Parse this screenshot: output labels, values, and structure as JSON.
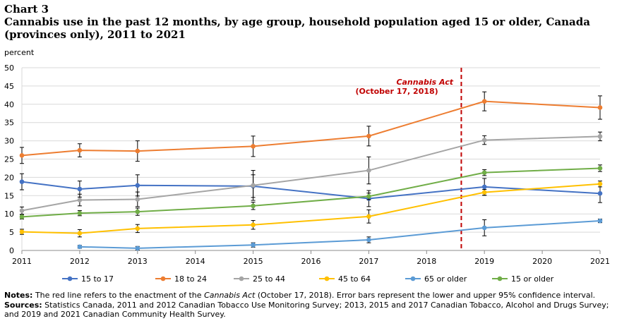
{
  "chart_label": "Chart 3",
  "chart_title": "Cannabis use in the past 12 months, by age group, household population aged 15 or older, Canada (provinces only), 2011 to 2021",
  "notes": {
    "notes_label": "Notes:",
    "notes_text_1": "The red line refers to the enactment of the",
    "notes_act": "Cannabis Act",
    "notes_text_2": "(October 17, 2018). Error bars represent the lower and upper 95% confidence interval.",
    "sources_label": "Sources:",
    "sources_text": "Statistics Canada, 2011 and 2012 Canadian Tobacco Use Monitoring Survey; 2013, 2015 and 2017 Canadian Tobacco, Alcohol and Drugs Survey; and 2019 and 2021 Canadian Community Health Survey."
  },
  "chart_data": {
    "type": "line",
    "ylabel": "percent",
    "xlabel": "",
    "x_ticks": [
      "2011",
      "2012",
      "2013",
      "2014",
      "2015",
      "2016",
      "2017",
      "2018",
      "2019",
      "2020",
      "2021"
    ],
    "xlim": [
      2011,
      2021
    ],
    "ylim": [
      0,
      50
    ],
    "y_ticks": [
      0,
      5,
      10,
      15,
      20,
      25,
      30,
      35,
      40,
      45,
      50
    ],
    "grid": true,
    "legend_position": "bottom",
    "annotation": {
      "line1": "Cannabis Act",
      "line2": "(October 17, 2018)",
      "x": 2018.6,
      "color": "#C00000"
    },
    "series": [
      {
        "name": "15 to 17",
        "color": "#4472C4",
        "points": [
          {
            "x": 2011,
            "y": 18.8,
            "lo": 16.6,
            "hi": 21.0
          },
          {
            "x": 2012,
            "y": 16.8,
            "lo": 14.6,
            "hi": 19.0
          },
          {
            "x": 2013,
            "y": 17.8,
            "lo": 14.9,
            "hi": 20.7
          },
          {
            "x": 2015,
            "y": 17.6,
            "lo": 14.5,
            "hi": 20.7
          },
          {
            "x": 2017,
            "y": 14.2,
            "lo": 12.0,
            "hi": 16.4
          },
          {
            "x": 2019,
            "y": 17.4,
            "lo": 15.1,
            "hi": 19.7
          },
          {
            "x": 2021,
            "y": 15.6,
            "lo": 13.1,
            "hi": 18.1
          }
        ]
      },
      {
        "name": "18 to 24",
        "color": "#ED7D31",
        "points": [
          {
            "x": 2011,
            "y": 26.0,
            "lo": 23.8,
            "hi": 28.2
          },
          {
            "x": 2012,
            "y": 27.4,
            "lo": 25.6,
            "hi": 29.2
          },
          {
            "x": 2013,
            "y": 27.2,
            "lo": 24.4,
            "hi": 30.0
          },
          {
            "x": 2015,
            "y": 28.5,
            "lo": 25.7,
            "hi": 31.3
          },
          {
            "x": 2017,
            "y": 31.3,
            "lo": 28.6,
            "hi": 34.0
          },
          {
            "x": 2019,
            "y": 40.8,
            "lo": 38.2,
            "hi": 43.4
          },
          {
            "x": 2021,
            "y": 39.1,
            "lo": 35.9,
            "hi": 42.3
          }
        ]
      },
      {
        "name": "25 to 44",
        "color": "#A5A5A5",
        "points": [
          {
            "x": 2011,
            "y": 10.9,
            "lo": 9.9,
            "hi": 11.9
          },
          {
            "x": 2012,
            "y": 13.8,
            "lo": 12.2,
            "hi": 15.4
          },
          {
            "x": 2013,
            "y": 14.0,
            "lo": 12.0,
            "hi": 16.0
          },
          {
            "x": 2015,
            "y": 17.8,
            "lo": 13.7,
            "hi": 21.9
          },
          {
            "x": 2017,
            "y": 21.9,
            "lo": 18.2,
            "hi": 25.6
          },
          {
            "x": 2019,
            "y": 30.2,
            "lo": 29.0,
            "hi": 31.4
          },
          {
            "x": 2021,
            "y": 31.2,
            "lo": 30.0,
            "hi": 32.4
          }
        ]
      },
      {
        "name": "45 to 64",
        "color": "#FFC000",
        "points": [
          {
            "x": 2011,
            "y": 5.1,
            "lo": 4.4,
            "hi": 5.8
          },
          {
            "x": 2012,
            "y": 4.7,
            "lo": 3.7,
            "hi": 5.7
          },
          {
            "x": 2013,
            "y": 6.0,
            "lo": 4.9,
            "hi": 7.1
          },
          {
            "x": 2015,
            "y": 7.0,
            "lo": 5.8,
            "hi": 8.2
          },
          {
            "x": 2017,
            "y": 9.3,
            "lo": 7.5,
            "hi": 11.1
          },
          {
            "x": 2019,
            "y": 15.9,
            "lo": 15.1,
            "hi": 16.7
          },
          {
            "x": 2021,
            "y": 18.2,
            "lo": 17.4,
            "hi": 19.0
          }
        ]
      },
      {
        "name": "65 or older",
        "color": "#5B9BD5",
        "points": [
          {
            "x": 2012,
            "y": 1.0,
            "lo": 0.6,
            "hi": 1.4
          },
          {
            "x": 2013,
            "y": 0.6,
            "lo": 0.1,
            "hi": 1.1
          },
          {
            "x": 2015,
            "y": 1.5,
            "lo": 0.9,
            "hi": 2.1
          },
          {
            "x": 2017,
            "y": 2.9,
            "lo": 2.1,
            "hi": 3.7
          },
          {
            "x": 2019,
            "y": 6.2,
            "lo": 4.0,
            "hi": 8.4
          },
          {
            "x": 2021,
            "y": 8.1,
            "lo": 7.6,
            "hi": 8.6
          }
        ]
      },
      {
        "name": "15 or older",
        "color": "#70AD47",
        "points": [
          {
            "x": 2011,
            "y": 9.2,
            "lo": 8.6,
            "hi": 9.8
          },
          {
            "x": 2012,
            "y": 10.2,
            "lo": 9.5,
            "hi": 10.9
          },
          {
            "x": 2013,
            "y": 10.6,
            "lo": 9.6,
            "hi": 11.6
          },
          {
            "x": 2015,
            "y": 12.2,
            "lo": 11.2,
            "hi": 13.2
          },
          {
            "x": 2017,
            "y": 14.8,
            "lo": 13.9,
            "hi": 15.7
          },
          {
            "x": 2019,
            "y": 21.3,
            "lo": 20.5,
            "hi": 22.1
          },
          {
            "x": 2021,
            "y": 22.5,
            "lo": 21.6,
            "hi": 23.4
          }
        ]
      }
    ]
  }
}
